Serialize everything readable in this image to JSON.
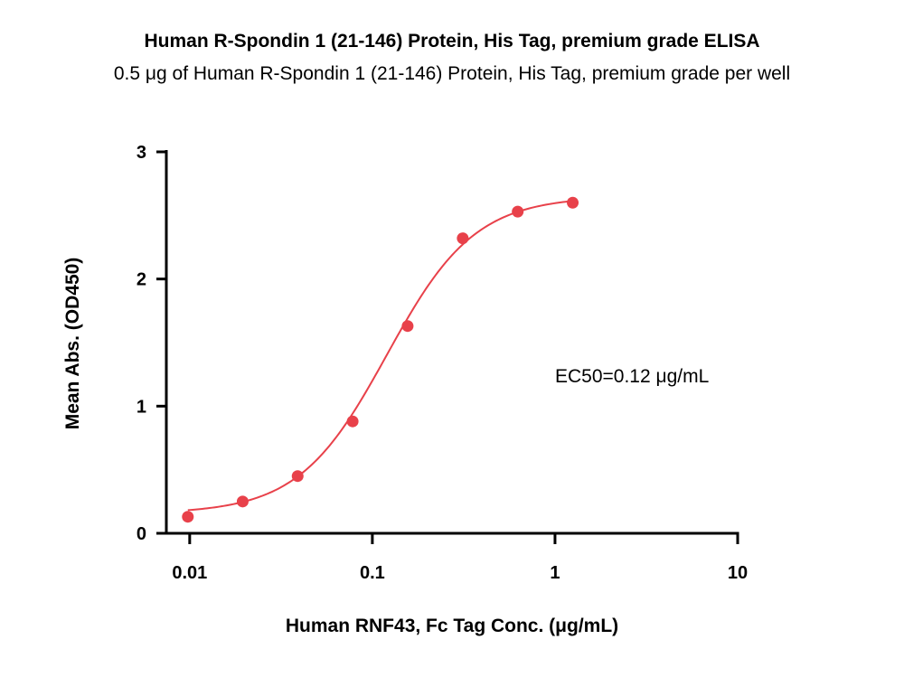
{
  "chart_data": {
    "type": "scatter",
    "title": "Human R-Spondin 1 (21-146) Protein, His Tag, premium grade ELISA",
    "subtitle": "0.5 μg of Human R-Spondin 1 (21-146) Protein, His Tag, premium grade per well",
    "xlabel": "Human RNF43, Fc Tag Conc. (μg/mL)",
    "ylabel": "Mean Abs. (OD450)",
    "x_scale": "log",
    "xlim": [
      0.00745,
      10
    ],
    "ylim": [
      0,
      3
    ],
    "x_ticks": [
      0.01,
      0.1,
      1,
      10
    ],
    "x_tick_labels": [
      "0.01",
      "0.1",
      "1",
      "10"
    ],
    "y_ticks": [
      0,
      1,
      2,
      3
    ],
    "y_tick_labels": [
      "0",
      "1",
      "2",
      "3"
    ],
    "grid": false,
    "series": [
      {
        "x": [
          0.00977,
          0.0195,
          0.039,
          0.078,
          0.156,
          0.3125,
          0.625,
          1.25
        ],
        "y": [
          0.13,
          0.25,
          0.45,
          0.88,
          1.63,
          2.32,
          2.53,
          2.6
        ]
      }
    ],
    "fit_curve": {
      "model": "4PL",
      "bottom": 0.155,
      "top": 2.65,
      "ec50": 0.12,
      "hill": 1.8
    },
    "annotations": [
      "EC50=0.12 μg/mL"
    ],
    "color": "#e8414a"
  }
}
